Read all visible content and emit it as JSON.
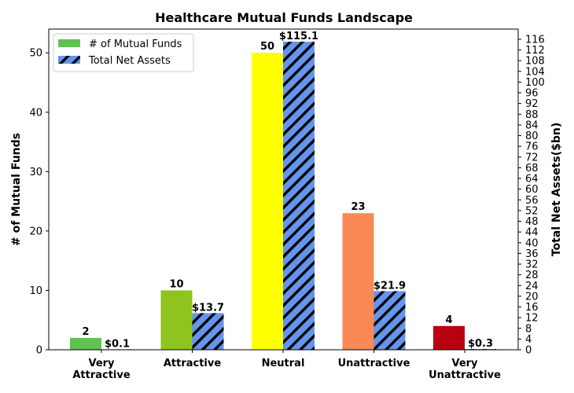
{
  "chart_data": {
    "type": "bar",
    "title": "Healthcare Mutual Funds Landscape",
    "categories": [
      [
        "Very",
        "Attractive"
      ],
      [
        "Attractive"
      ],
      [
        "Neutral"
      ],
      [
        "Unattractive"
      ],
      [
        "Very",
        "Unattractive"
      ]
    ],
    "ylabel_left": "# of Mutual Funds",
    "ylabel_right": "Total Net Assets($bn)",
    "ylim_left": [
      0,
      54
    ],
    "ylim_right": [
      0,
      119.8
    ],
    "left_ticks": [
      0,
      10,
      20,
      30,
      40,
      50
    ],
    "right_tick_step": 4,
    "right_tick_max": 116,
    "legend_position": "top-left",
    "series": [
      {
        "name": "# of Mutual Funds",
        "axis": "left",
        "values": [
          2,
          10,
          50,
          23,
          4
        ],
        "labels": [
          "2",
          "10",
          "50",
          "23",
          "4"
        ],
        "colors": [
          "#5ec44f",
          "#8fc31f",
          "#ffff00",
          "#f98a55",
          "#b8000f"
        ],
        "legend_color": "#5ec44f"
      },
      {
        "name": "Total Net Assets",
        "axis": "right",
        "values": [
          0.1,
          13.7,
          115.1,
          21.9,
          0.3
        ],
        "labels": [
          "$0.1",
          "$13.7",
          "$115.1",
          "$21.9",
          "$0.3"
        ],
        "color": "#6495ed",
        "hatch": "diagonal"
      }
    ]
  }
}
